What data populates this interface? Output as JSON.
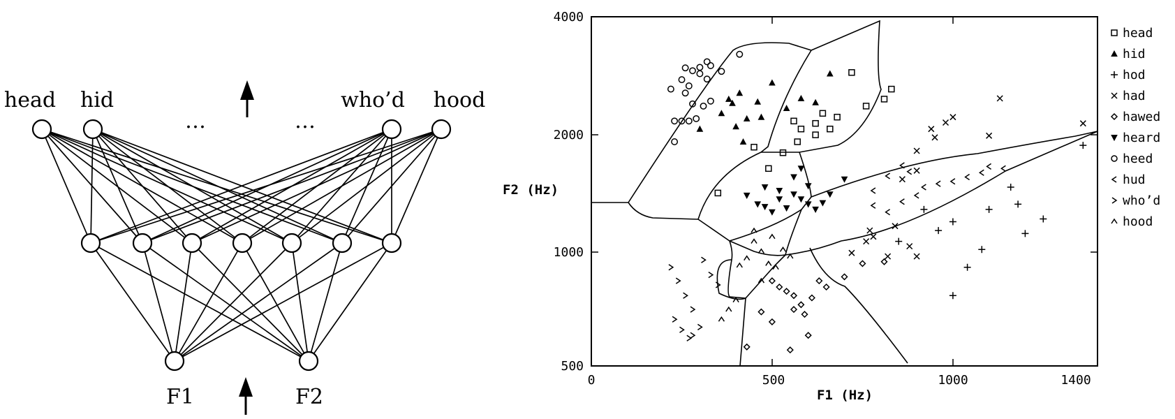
{
  "network": {
    "output_labels": [
      "head",
      "hid",
      "who’d",
      "hood"
    ],
    "ellipsis": "…",
    "input_labels": [
      "F1",
      "F2"
    ]
  },
  "chart_data": {
    "type": "scatter",
    "xlabel": "F1 (Hz)",
    "ylabel": "F2 (Hz)",
    "x_ticks": [
      "0",
      "500",
      "1000",
      "1400"
    ],
    "y_ticks": [
      "4000",
      "2000",
      "1000",
      "500"
    ],
    "x_scale": "linear",
    "y_scale": "log",
    "xlim": [
      0,
      1400
    ],
    "ylim": [
      500,
      4000
    ],
    "grid": false,
    "legend_position": "right",
    "legend": [
      {
        "label": "head",
        "marker": "square"
      },
      {
        "label": "hid",
        "marker": "triangle"
      },
      {
        "label": "hod",
        "marker": "plus"
      },
      {
        "label": "had",
        "marker": "x"
      },
      {
        "label": "hawed",
        "marker": "diamond"
      },
      {
        "label": "heard",
        "marker": "triangle-down"
      },
      {
        "label": "heed",
        "marker": "circle"
      },
      {
        "label": "hud",
        "marker": "lt"
      },
      {
        "label": "who’d",
        "marker": "gt"
      },
      {
        "label": "hood",
        "marker": "caret"
      }
    ],
    "series": [
      {
        "name": "head",
        "marker": "square",
        "points": [
          [
            350,
            1400
          ],
          [
            570,
            1900
          ],
          [
            640,
            2250
          ],
          [
            720,
            2870
          ],
          [
            830,
            2600
          ],
          [
            810,
            2450
          ],
          [
            530,
            1780
          ],
          [
            580,
            2050
          ],
          [
            620,
            2120
          ],
          [
            660,
            2050
          ],
          [
            760,
            2350
          ],
          [
            680,
            2200
          ],
          [
            450,
            1840
          ],
          [
            490,
            1620
          ],
          [
            560,
            2150
          ],
          [
            620,
            1980
          ]
        ]
      },
      {
        "name": "hid",
        "marker": "triangle",
        "points": [
          [
            300,
            2050
          ],
          [
            360,
            2250
          ],
          [
            380,
            2450
          ],
          [
            400,
            2080
          ],
          [
            430,
            2180
          ],
          [
            410,
            2540
          ],
          [
            460,
            2410
          ],
          [
            500,
            2700
          ],
          [
            540,
            2320
          ],
          [
            580,
            2460
          ],
          [
            620,
            2400
          ],
          [
            660,
            2850
          ],
          [
            420,
            1900
          ],
          [
            470,
            2200
          ],
          [
            390,
            2390
          ]
        ]
      },
      {
        "name": "hod",
        "marker": "plus",
        "points": [
          [
            1040,
            900
          ],
          [
            1080,
            1000
          ],
          [
            1000,
            1180
          ],
          [
            1160,
            1450
          ],
          [
            1180,
            1310
          ],
          [
            1250,
            1200
          ],
          [
            1360,
            1860
          ],
          [
            1200,
            1100
          ],
          [
            960,
            1120
          ],
          [
            920,
            1270
          ],
          [
            850,
            1050
          ],
          [
            1000,
            760
          ],
          [
            1100,
            1270
          ]
        ]
      },
      {
        "name": "had",
        "marker": "x",
        "points": [
          [
            860,
            1520
          ],
          [
            900,
            1600
          ],
          [
            900,
            1800
          ],
          [
            950,
            1950
          ],
          [
            980,
            2130
          ],
          [
            1000,
            2200
          ],
          [
            1100,
            1970
          ],
          [
            1130,
            2460
          ],
          [
            1360,
            2120
          ],
          [
            940,
            2050
          ],
          [
            770,
            1120
          ],
          [
            820,
            960
          ],
          [
            880,
            1020
          ],
          [
            720,
            980
          ],
          [
            780,
            1080
          ],
          [
            840,
            1150
          ],
          [
            900,
            960
          ],
          [
            760,
            1050
          ]
        ]
      },
      {
        "name": "hawed",
        "marker": "diamond",
        "points": [
          [
            500,
            830
          ],
          [
            520,
            800
          ],
          [
            540,
            780
          ],
          [
            560,
            760
          ],
          [
            580,
            720
          ],
          [
            610,
            750
          ],
          [
            630,
            830
          ],
          [
            560,
            700
          ],
          [
            590,
            680
          ],
          [
            470,
            690
          ],
          [
            500,
            650
          ],
          [
            600,
            600
          ],
          [
            650,
            800
          ],
          [
            700,
            850
          ],
          [
            750,
            920
          ],
          [
            810,
            930
          ],
          [
            550,
            550
          ],
          [
            430,
            560
          ]
        ]
      },
      {
        "name": "heard",
        "marker": "triangle-down",
        "points": [
          [
            430,
            1380
          ],
          [
            460,
            1310
          ],
          [
            480,
            1290
          ],
          [
            500,
            1250
          ],
          [
            520,
            1350
          ],
          [
            540,
            1280
          ],
          [
            560,
            1390
          ],
          [
            580,
            1350
          ],
          [
            600,
            1310
          ],
          [
            620,
            1270
          ],
          [
            640,
            1320
          ],
          [
            660,
            1390
          ],
          [
            700,
            1520
          ],
          [
            560,
            1540
          ],
          [
            600,
            1460
          ],
          [
            480,
            1450
          ],
          [
            520,
            1420
          ],
          [
            580,
            1620
          ]
        ]
      },
      {
        "name": "heed",
        "marker": "circle",
        "points": [
          [
            230,
            2150
          ],
          [
            250,
            2150
          ],
          [
            270,
            2150
          ],
          [
            290,
            2180
          ],
          [
            310,
            2350
          ],
          [
            330,
            2420
          ],
          [
            270,
            2650
          ],
          [
            300,
            2850
          ],
          [
            330,
            2990
          ],
          [
            360,
            2890
          ],
          [
            280,
            2900
          ],
          [
            300,
            2960
          ],
          [
            320,
            3060
          ],
          [
            260,
            2950
          ],
          [
            320,
            2760
          ],
          [
            410,
            3200
          ],
          [
            230,
            1900
          ],
          [
            220,
            2600
          ],
          [
            260,
            2540
          ],
          [
            280,
            2380
          ],
          [
            250,
            2750
          ]
        ]
      },
      {
        "name": "hud",
        "marker": "lt",
        "points": [
          [
            780,
            1420
          ],
          [
            820,
            1550
          ],
          [
            860,
            1650
          ],
          [
            880,
            1590
          ],
          [
            920,
            1450
          ],
          [
            960,
            1480
          ],
          [
            1000,
            1500
          ],
          [
            1040,
            1540
          ],
          [
            1080,
            1580
          ],
          [
            1100,
            1640
          ],
          [
            1140,
            1620
          ],
          [
            780,
            1300
          ],
          [
            820,
            1250
          ],
          [
            860,
            1330
          ],
          [
            900,
            1380
          ]
        ]
      },
      {
        "name": "who’d",
        "marker": "gt",
        "points": [
          [
            220,
            900
          ],
          [
            240,
            830
          ],
          [
            260,
            760
          ],
          [
            280,
            700
          ],
          [
            230,
            660
          ],
          [
            250,
            620
          ],
          [
            270,
            590
          ],
          [
            310,
            940
          ],
          [
            330,
            860
          ],
          [
            350,
            810
          ],
          [
            300,
            630
          ],
          [
            280,
            600
          ]
        ]
      },
      {
        "name": "hood",
        "marker": "caret",
        "points": [
          [
            430,
            950
          ],
          [
            450,
            1050
          ],
          [
            470,
            990
          ],
          [
            490,
            920
          ],
          [
            510,
            900
          ],
          [
            530,
            1000
          ],
          [
            550,
            960
          ],
          [
            450,
            1120
          ],
          [
            500,
            1080
          ],
          [
            410,
            910
          ],
          [
            470,
            830
          ],
          [
            360,
            660
          ],
          [
            380,
            700
          ],
          [
            400,
            740
          ]
        ]
      }
    ]
  }
}
